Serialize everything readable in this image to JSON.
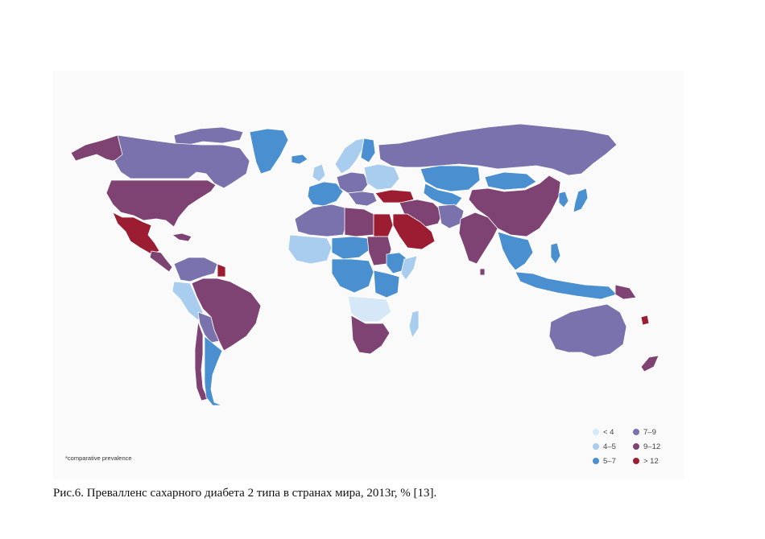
{
  "legend": {
    "items": [
      {
        "label": "< 4",
        "color": "#d6e8f7"
      },
      {
        "label": "4–5",
        "color": "#a8cdee"
      },
      {
        "label": "5–7",
        "color": "#4a90d0"
      },
      {
        "label": "7–9",
        "color": "#7a72ad"
      },
      {
        "label": "9–12",
        "color": "#7e4373"
      },
      {
        "label": "> 12",
        "color": "#9c1c32"
      }
    ]
  },
  "footnote": "*comparative prevalence",
  "caption": "Рис.6.  Превалленс сахарного диабета 2 типа в странах мира, 2013г, % [13].",
  "map": {
    "land_border_color": "#ffffff",
    "regions": [
      {
        "id": "alaska",
        "category": "9–12"
      },
      {
        "id": "canada",
        "category": "7–9"
      },
      {
        "id": "greenland",
        "category": "5–7"
      },
      {
        "id": "arctic-islands",
        "category": "7–9"
      },
      {
        "id": "usa",
        "category": "9–12"
      },
      {
        "id": "mexico",
        "category": "> 12"
      },
      {
        "id": "central-america",
        "category": "9–12"
      },
      {
        "id": "caribbean",
        "category": "9–12"
      },
      {
        "id": "colombia-venezuela",
        "category": "7–9"
      },
      {
        "id": "guianas",
        "category": "> 12"
      },
      {
        "id": "peru-ecuador",
        "category": "4–5"
      },
      {
        "id": "brazil",
        "category": "9–12"
      },
      {
        "id": "bolivia-paraguay",
        "category": "7–9"
      },
      {
        "id": "chile",
        "category": "9–12"
      },
      {
        "id": "argentina",
        "category": "5–7"
      },
      {
        "id": "iceland",
        "category": "5–7"
      },
      {
        "id": "uk-ireland",
        "category": "4–5"
      },
      {
        "id": "scandinavia",
        "category": "4–5"
      },
      {
        "id": "finland",
        "category": "5–7"
      },
      {
        "id": "western-europe",
        "category": "5–7"
      },
      {
        "id": "central-europe",
        "category": "7–9"
      },
      {
        "id": "eastern-europe",
        "category": "4–5"
      },
      {
        "id": "balkans",
        "category": "7–9"
      },
      {
        "id": "russia",
        "category": "7–9"
      },
      {
        "id": "kazakhstan",
        "category": "5–7"
      },
      {
        "id": "central-asia",
        "category": "5–7"
      },
      {
        "id": "mongolia",
        "category": "5–7"
      },
      {
        "id": "china",
        "category": "9–12"
      },
      {
        "id": "korea",
        "category": "5–7"
      },
      {
        "id": "japan",
        "category": "5–7"
      },
      {
        "id": "turkey",
        "category": "> 12"
      },
      {
        "id": "iran-iraq",
        "category": "9–12"
      },
      {
        "id": "arabian-peninsula",
        "category": "> 12"
      },
      {
        "id": "egypt",
        "category": "> 12"
      },
      {
        "id": "libya",
        "category": "9–12"
      },
      {
        "id": "maghreb",
        "category": "7–9"
      },
      {
        "id": "west-africa",
        "category": "4–5"
      },
      {
        "id": "sahel",
        "category": "5–7"
      },
      {
        "id": "sudan",
        "category": "9–12"
      },
      {
        "id": "ethiopia",
        "category": "5–7"
      },
      {
        "id": "horn-of-africa",
        "category": "4–5"
      },
      {
        "id": "central-africa",
        "category": "5–7"
      },
      {
        "id": "east-africa",
        "category": "5–7"
      },
      {
        "id": "southern-central-africa",
        "category": "< 4"
      },
      {
        "id": "southern-africa",
        "category": "9–12"
      },
      {
        "id": "madagascar",
        "category": "4–5"
      },
      {
        "id": "india",
        "category": "9–12"
      },
      {
        "id": "pakistan-afghanistan",
        "category": "7–9"
      },
      {
        "id": "sri-lanka",
        "category": "9–12"
      },
      {
        "id": "southeast-asia",
        "category": "5–7"
      },
      {
        "id": "indonesia",
        "category": "5–7"
      },
      {
        "id": "philippines",
        "category": "5–7"
      },
      {
        "id": "papua",
        "category": "9–12"
      },
      {
        "id": "australia",
        "category": "7–9"
      },
      {
        "id": "new-zealand",
        "category": "9–12"
      },
      {
        "id": "pacific-islands",
        "category": "> 12"
      }
    ]
  }
}
